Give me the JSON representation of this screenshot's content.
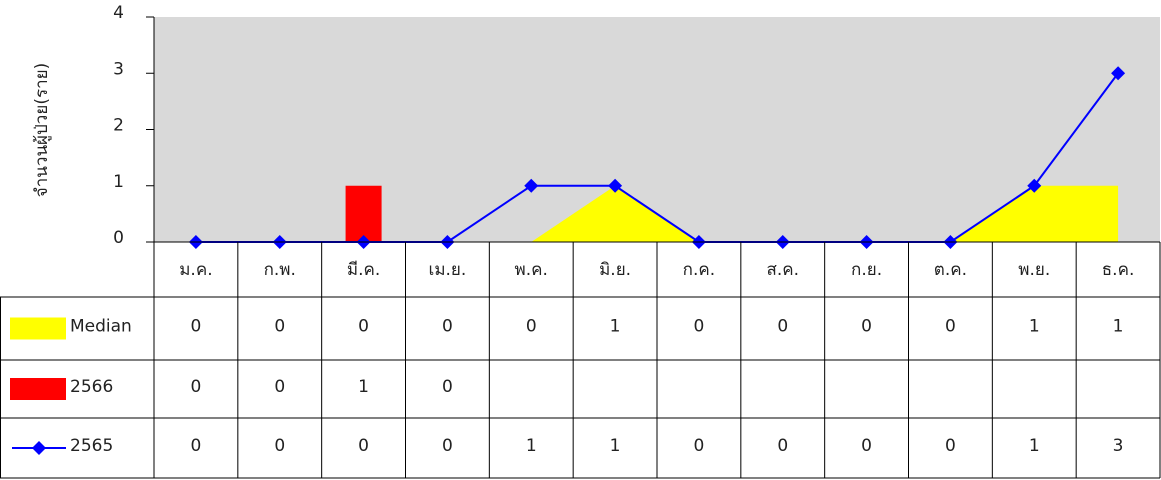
{
  "chart_data": {
    "type": "combo",
    "y_axis_label": "จำนวนผู้ป่วย(ราย)",
    "categories": [
      "ม.ค.",
      "ก.พ.",
      "มี.ค.",
      "เม.ย.",
      "พ.ค.",
      "มิ.ย.",
      "ก.ค.",
      "ส.ค.",
      "ก.ย.",
      "ต.ค.",
      "พ.ย.",
      "ธ.ค."
    ],
    "ylim": [
      0,
      4
    ],
    "yticks": [
      0,
      1,
      2,
      3,
      4
    ],
    "plot_background": "#d9d9d9",
    "series": [
      {
        "name": "Median",
        "type": "area",
        "color": "#ffff00",
        "values": [
          0,
          0,
          0,
          0,
          0,
          1,
          0,
          0,
          0,
          0,
          1,
          1
        ]
      },
      {
        "name": "2566",
        "type": "bar",
        "color": "#ff0000",
        "values": [
          0,
          0,
          1,
          0,
          null,
          null,
          null,
          null,
          null,
          null,
          null,
          null
        ]
      },
      {
        "name": "2565",
        "type": "line",
        "color": "#0000ff",
        "values": [
          0,
          0,
          0,
          0,
          1,
          1,
          0,
          0,
          0,
          0,
          1,
          3
        ]
      }
    ]
  }
}
